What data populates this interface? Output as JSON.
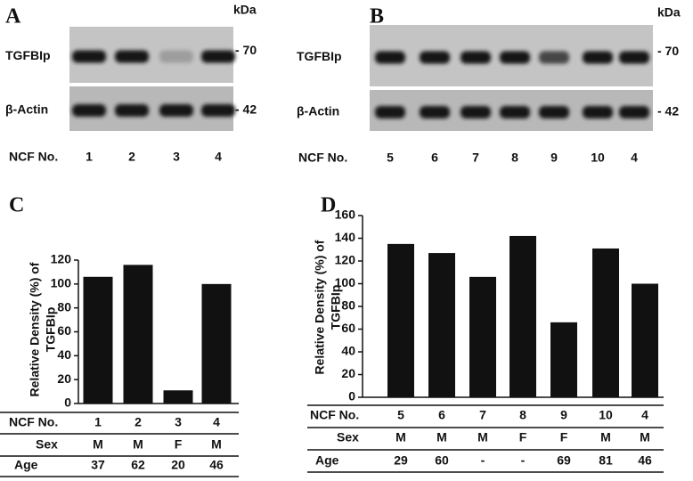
{
  "blots": [
    {
      "panel": "A",
      "unit": "kDa",
      "lane_label": "NCF No.",
      "lanes": [
        "1",
        "2",
        "3",
        "4"
      ],
      "rows": [
        {
          "label": "TGFBIp",
          "marker": "- 70"
        },
        {
          "label": "β-Actin",
          "marker": "- 42"
        }
      ]
    },
    {
      "panel": "B",
      "unit": "kDa",
      "lane_label": "NCF No.",
      "lanes": [
        "5",
        "6",
        "7",
        "8",
        "9",
        "10",
        "4"
      ],
      "rows": [
        {
          "label": "TGFBIp",
          "marker": "- 70"
        },
        {
          "label": "β-Actin",
          "marker": "- 42"
        }
      ]
    }
  ],
  "chart_data": [
    {
      "type": "bar",
      "panel": "C",
      "ylabel": [
        "Relative Density (%) of",
        "TGFBIp"
      ],
      "xlabel": "NCF No.",
      "categories": [
        "1",
        "2",
        "3",
        "4"
      ],
      "values": [
        106,
        116,
        11,
        100
      ],
      "color": "#111111",
      "ylim": [
        0,
        120
      ],
      "yticks": [
        0,
        20,
        40,
        60,
        80,
        100,
        120
      ],
      "table": [
        {
          "label": "Sex",
          "values": [
            "M",
            "M",
            "F",
            "M"
          ]
        },
        {
          "label": "Age",
          "values": [
            "37",
            "62",
            "20",
            "46"
          ]
        }
      ]
    },
    {
      "type": "bar",
      "panel": "D",
      "ylabel": [
        "Relative Density (%) of",
        "TGFBIp"
      ],
      "xlabel": "NCF No.",
      "categories": [
        "5",
        "6",
        "7",
        "8",
        "9",
        "10",
        "4"
      ],
      "values": [
        135,
        127,
        106,
        142,
        66,
        131,
        100
      ],
      "color": "#111111",
      "ylim": [
        0,
        160
      ],
      "yticks": [
        0,
        20,
        40,
        60,
        80,
        100,
        120,
        140,
        160
      ],
      "table": [
        {
          "label": "Sex",
          "values": [
            "M",
            "M",
            "M",
            "F",
            "F",
            "M",
            "M"
          ]
        },
        {
          "label": "Age",
          "values": [
            "29",
            "60",
            "-",
            "-",
            "69",
            "81",
            "46"
          ]
        }
      ]
    }
  ]
}
